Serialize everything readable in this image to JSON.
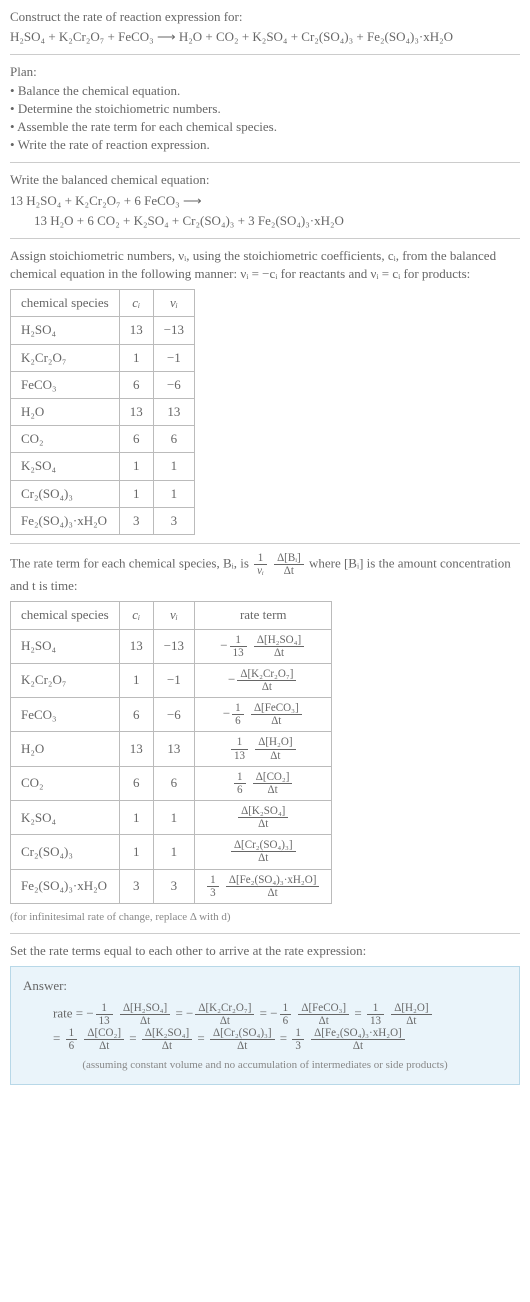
{
  "header": {
    "construct": "Construct the rate of reaction expression for:",
    "equation": "H₂SO₄ + K₂Cr₂O₇ + FeCO₃ ⟶ H₂O + CO₂ + K₂SO₄ + Cr₂(SO₄)₃ + Fe₂(SO₄)₃·xH₂O"
  },
  "plan": {
    "title": "Plan:",
    "items": [
      "Balance the chemical equation.",
      "Determine the stoichiometric numbers.",
      "Assemble the rate term for each chemical species.",
      "Write the rate of reaction expression."
    ]
  },
  "balanced": {
    "title": "Write the balanced chemical equation:",
    "line1": "13 H₂SO₄ + K₂Cr₂O₇ + 6 FeCO₃ ⟶",
    "line2": "13 H₂O + 6 CO₂ + K₂SO₄ + Cr₂(SO₄)₃ + 3 Fe₂(SO₄)₃·xH₂O"
  },
  "assign": {
    "text": "Assign stoichiometric numbers, νᵢ, using the stoichiometric coefficients, cᵢ, from the balanced chemical equation in the following manner: νᵢ = −cᵢ for reactants and νᵢ = cᵢ for products:"
  },
  "table1": {
    "headers": [
      "chemical species",
      "cᵢ",
      "νᵢ"
    ],
    "rows": [
      [
        "H₂SO₄",
        "13",
        "−13"
      ],
      [
        "K₂Cr₂O₇",
        "1",
        "−1"
      ],
      [
        "FeCO₃",
        "6",
        "−6"
      ],
      [
        "H₂O",
        "13",
        "13"
      ],
      [
        "CO₂",
        "6",
        "6"
      ],
      [
        "K₂SO₄",
        "1",
        "1"
      ],
      [
        "Cr₂(SO₄)₃",
        "1",
        "1"
      ],
      [
        "Fe₂(SO₄)₃·xH₂O",
        "3",
        "3"
      ]
    ]
  },
  "rateterm": {
    "prefix": "The rate term for each chemical species, Bᵢ, is ",
    "suffix": " where [Bᵢ] is the amount concentration and t is time:",
    "frac1_num": "1",
    "frac1_den": "νᵢ",
    "frac2_num": "Δ[Bᵢ]",
    "frac2_den": "Δt"
  },
  "table2": {
    "headers": [
      "chemical species",
      "cᵢ",
      "νᵢ",
      "rate term"
    ],
    "rows": [
      {
        "sp": "H₂SO₄",
        "c": "13",
        "v": "−13",
        "sign": "−",
        "n1": "1",
        "d1": "13",
        "n2": "Δ[H₂SO₄]",
        "d2": "Δt"
      },
      {
        "sp": "K₂Cr₂O₇",
        "c": "1",
        "v": "−1",
        "sign": "−",
        "n1": "",
        "d1": "",
        "n2": "Δ[K₂Cr₂O₇]",
        "d2": "Δt"
      },
      {
        "sp": "FeCO₃",
        "c": "6",
        "v": "−6",
        "sign": "−",
        "n1": "1",
        "d1": "6",
        "n2": "Δ[FeCO₃]",
        "d2": "Δt"
      },
      {
        "sp": "H₂O",
        "c": "13",
        "v": "13",
        "sign": "",
        "n1": "1",
        "d1": "13",
        "n2": "Δ[H₂O]",
        "d2": "Δt"
      },
      {
        "sp": "CO₂",
        "c": "6",
        "v": "6",
        "sign": "",
        "n1": "1",
        "d1": "6",
        "n2": "Δ[CO₂]",
        "d2": "Δt"
      },
      {
        "sp": "K₂SO₄",
        "c": "1",
        "v": "1",
        "sign": "",
        "n1": "",
        "d1": "",
        "n2": "Δ[K₂SO₄]",
        "d2": "Δt"
      },
      {
        "sp": "Cr₂(SO₄)₃",
        "c": "1",
        "v": "1",
        "sign": "",
        "n1": "",
        "d1": "",
        "n2": "Δ[Cr₂(SO₄)₃]",
        "d2": "Δt"
      },
      {
        "sp": "Fe₂(SO₄)₃·xH₂O",
        "c": "3",
        "v": "3",
        "sign": "",
        "n1": "1",
        "d1": "3",
        "n2": "Δ[Fe₂(SO₄)₃·xH₂O]",
        "d2": "Δt"
      }
    ]
  },
  "note": "(for infinitesimal rate of change, replace Δ with d)",
  "setequal": "Set the rate terms equal to each other to arrive at the rate expression:",
  "answer": {
    "title": "Answer:",
    "terms1": [
      {
        "pre": "rate = −",
        "n1": "1",
        "d1": "13",
        "n2": "Δ[H₂SO₄]",
        "d2": "Δt"
      },
      {
        "pre": " = −",
        "n1": "",
        "d1": "",
        "n2": "Δ[K₂Cr₂O₇]",
        "d2": "Δt"
      },
      {
        "pre": " = −",
        "n1": "1",
        "d1": "6",
        "n2": "Δ[FeCO₃]",
        "d2": "Δt"
      },
      {
        "pre": " = ",
        "n1": "1",
        "d1": "13",
        "n2": "Δ[H₂O]",
        "d2": "Δt"
      }
    ],
    "terms2": [
      {
        "pre": "= ",
        "n1": "1",
        "d1": "6",
        "n2": "Δ[CO₂]",
        "d2": "Δt"
      },
      {
        "pre": " = ",
        "n1": "",
        "d1": "",
        "n2": "Δ[K₂SO₄]",
        "d2": "Δt"
      },
      {
        "pre": " = ",
        "n1": "",
        "d1": "",
        "n2": "Δ[Cr₂(SO₄)₃]",
        "d2": "Δt"
      },
      {
        "pre": " = ",
        "n1": "1",
        "d1": "3",
        "n2": "Δ[Fe₂(SO₄)₃·xH₂O]",
        "d2": "Δt"
      }
    ],
    "note": "(assuming constant volume and no accumulation of intermediates or side products)"
  }
}
